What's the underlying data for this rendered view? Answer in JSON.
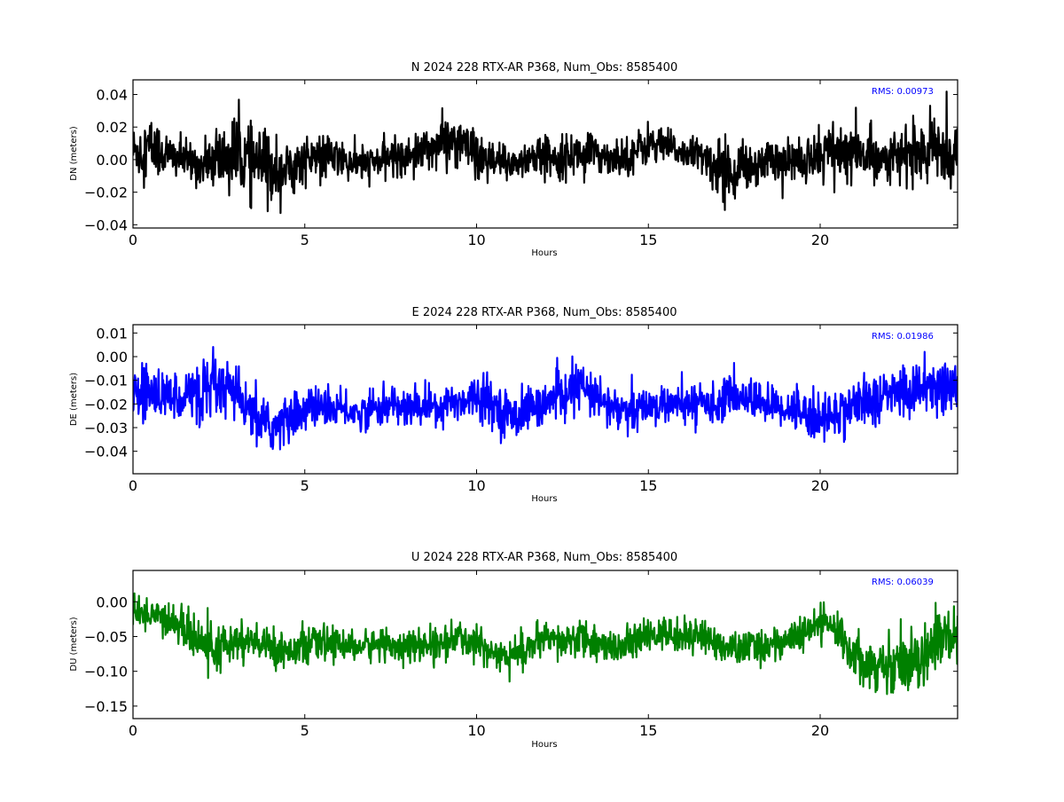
{
  "chart_data": [
    {
      "type": "line",
      "title": "N 2024 228 RTX-AR  P368, Num_Obs: 8585400",
      "xlabel": "Hours",
      "ylabel": "DN (meters)",
      "xlim": [
        0,
        24
      ],
      "ylim": [
        -0.042,
        0.049
      ],
      "xticks": [
        0,
        5,
        10,
        15,
        20
      ],
      "yticks": [
        -0.04,
        -0.02,
        0.0,
        0.02,
        0.04
      ],
      "ytick_labels": [
        "−0.04",
        "−0.02",
        "0.00",
        "0.02",
        "0.04"
      ],
      "grid": false,
      "color": "#000000",
      "annotation": "RMS:  0.00973",
      "annotation_color": "#0000ff",
      "series": [
        {
          "x": [
            0,
            0.5,
            1,
            1.5,
            2,
            2.5,
            3,
            3.5,
            4,
            4.5,
            5,
            5.5,
            6,
            6.5,
            7,
            7.5,
            8,
            8.5,
            9,
            9.5,
            10,
            10.5,
            11,
            11.5,
            12,
            12.5,
            13,
            13.5,
            14,
            14.5,
            15,
            15.5,
            16,
            16.5,
            17,
            17.5,
            18,
            18.5,
            19,
            19.5,
            20,
            20.5,
            21,
            21.5,
            22,
            22.5,
            23,
            23.5,
            24
          ],
          "center": [
            0.005,
            0.008,
            0.003,
            0.0,
            -0.004,
            0.0,
            0.003,
            -0.002,
            -0.005,
            -0.006,
            0.0,
            0.002,
            0.0,
            -0.003,
            -0.002,
            0.002,
            0.003,
            0.006,
            0.01,
            0.012,
            0.0,
            -0.003,
            -0.002,
            0.0,
            0.003,
            0.002,
            0.004,
            0.003,
            0.002,
            0.003,
            0.01,
            0.008,
            0.004,
            0.003,
            -0.005,
            -0.006,
            -0.004,
            0.001,
            -0.002,
            0.0,
            0.004,
            0.006,
            0.002,
            0.003,
            0.002,
            0.003,
            0.004,
            0.006,
            0.004
          ],
          "spread": [
            0.018,
            0.022,
            0.016,
            0.013,
            0.014,
            0.022,
            0.026,
            0.024,
            0.025,
            0.018,
            0.015,
            0.016,
            0.013,
            0.012,
            0.011,
            0.012,
            0.012,
            0.014,
            0.018,
            0.016,
            0.014,
            0.015,
            0.013,
            0.013,
            0.013,
            0.014,
            0.015,
            0.013,
            0.013,
            0.013,
            0.014,
            0.012,
            0.011,
            0.012,
            0.018,
            0.02,
            0.015,
            0.014,
            0.013,
            0.015,
            0.02,
            0.022,
            0.02,
            0.018,
            0.016,
            0.018,
            0.018,
            0.026,
            0.02
          ]
        }
      ]
    },
    {
      "type": "line",
      "title": "E 2024 228 RTX-AR  P368, Num_Obs: 8585400",
      "xlabel": "Hours",
      "ylabel": "DE (meters)",
      "xlim": [
        0,
        24
      ],
      "ylim": [
        -0.0495,
        0.0135
      ],
      "xticks": [
        0,
        5,
        10,
        15,
        20
      ],
      "yticks": [
        -0.04,
        -0.03,
        -0.02,
        -0.01,
        0.0,
        0.01
      ],
      "ytick_labels": [
        "−0.04",
        "−0.03",
        "−0.02",
        "−0.01",
        "0.00",
        "0.01"
      ],
      "grid": false,
      "color": "#0000ff",
      "annotation": "RMS:  0.01986",
      "annotation_color": "#0000ff",
      "series": [
        {
          "x": [
            0,
            0.5,
            1,
            1.5,
            2,
            2.5,
            3,
            3.5,
            4,
            4.5,
            5,
            5.5,
            6,
            6.5,
            7,
            7.5,
            8,
            8.5,
            9,
            9.5,
            10,
            10.5,
            11,
            11.5,
            12,
            12.5,
            13,
            13.5,
            14,
            14.5,
            15,
            15.5,
            16,
            16.5,
            17,
            17.5,
            18,
            18.5,
            19,
            19.5,
            20,
            20.5,
            21,
            21.5,
            22,
            22.5,
            23,
            23.5,
            24
          ],
          "center": [
            -0.017,
            -0.015,
            -0.017,
            -0.016,
            -0.015,
            -0.014,
            -0.016,
            -0.026,
            -0.03,
            -0.027,
            -0.022,
            -0.021,
            -0.022,
            -0.024,
            -0.022,
            -0.021,
            -0.022,
            -0.021,
            -0.02,
            -0.019,
            -0.016,
            -0.02,
            -0.026,
            -0.022,
            -0.02,
            -0.016,
            -0.012,
            -0.018,
            -0.022,
            -0.024,
            -0.021,
            -0.02,
            -0.021,
            -0.019,
            -0.02,
            -0.016,
            -0.018,
            -0.02,
            -0.022,
            -0.023,
            -0.026,
            -0.024,
            -0.02,
            -0.019,
            -0.016,
            -0.015,
            -0.012,
            -0.012,
            -0.014
          ],
          "spread": [
            0.011,
            0.013,
            0.011,
            0.012,
            0.013,
            0.015,
            0.012,
            0.012,
            0.011,
            0.012,
            0.01,
            0.009,
            0.008,
            0.008,
            0.008,
            0.009,
            0.009,
            0.009,
            0.009,
            0.009,
            0.01,
            0.01,
            0.011,
            0.01,
            0.009,
            0.01,
            0.011,
            0.01,
            0.01,
            0.011,
            0.009,
            0.008,
            0.009,
            0.008,
            0.009,
            0.009,
            0.009,
            0.009,
            0.009,
            0.01,
            0.013,
            0.012,
            0.012,
            0.011,
            0.012,
            0.013,
            0.015,
            0.014,
            0.012
          ]
        }
      ]
    },
    {
      "type": "line",
      "title": "U 2024 228 RTX-AR  P368, Num_Obs: 8585400",
      "xlabel": "Hours",
      "ylabel": "DU (meters)",
      "xlim": [
        0,
        24
      ],
      "ylim": [
        -0.168,
        0.045
      ],
      "xticks": [
        0,
        5,
        10,
        15,
        20
      ],
      "yticks": [
        -0.15,
        -0.1,
        -0.05,
        0.0
      ],
      "ytick_labels": [
        "−0.15",
        "−0.10",
        "−0.05",
        "0.00"
      ],
      "grid": false,
      "color": "#008000",
      "annotation": "RMS:  0.06039",
      "annotation_color": "#0000ff",
      "series": [
        {
          "x": [
            0,
            0.5,
            1,
            1.5,
            2,
            2.5,
            3,
            3.5,
            4,
            4.5,
            5,
            5.5,
            6,
            6.5,
            7,
            7.5,
            8,
            8.5,
            9,
            9.5,
            10,
            10.5,
            11,
            11.5,
            12,
            12.5,
            13,
            13.5,
            14,
            14.5,
            15,
            15.5,
            16,
            16.5,
            17,
            17.5,
            18,
            18.5,
            19,
            19.5,
            20,
            20.5,
            21,
            21.5,
            22,
            22.5,
            23,
            23.5,
            24
          ],
          "center": [
            -0.02,
            -0.015,
            -0.025,
            -0.04,
            -0.06,
            -0.07,
            -0.055,
            -0.06,
            -0.065,
            -0.07,
            -0.062,
            -0.06,
            -0.06,
            -0.065,
            -0.062,
            -0.06,
            -0.065,
            -0.063,
            -0.06,
            -0.052,
            -0.06,
            -0.07,
            -0.08,
            -0.065,
            -0.055,
            -0.06,
            -0.05,
            -0.06,
            -0.065,
            -0.06,
            -0.05,
            -0.045,
            -0.052,
            -0.045,
            -0.06,
            -0.07,
            -0.065,
            -0.062,
            -0.055,
            -0.05,
            -0.03,
            -0.04,
            -0.075,
            -0.09,
            -0.09,
            -0.085,
            -0.075,
            -0.05,
            -0.06
          ],
          "spread": [
            0.025,
            0.028,
            0.026,
            0.03,
            0.036,
            0.038,
            0.032,
            0.03,
            0.03,
            0.028,
            0.026,
            0.026,
            0.024,
            0.024,
            0.024,
            0.025,
            0.025,
            0.024,
            0.025,
            0.028,
            0.026,
            0.028,
            0.032,
            0.028,
            0.026,
            0.028,
            0.03,
            0.028,
            0.027,
            0.026,
            0.026,
            0.026,
            0.025,
            0.026,
            0.025,
            0.026,
            0.028,
            0.028,
            0.026,
            0.028,
            0.03,
            0.03,
            0.036,
            0.04,
            0.045,
            0.045,
            0.05,
            0.055,
            0.045
          ]
        }
      ]
    }
  ]
}
